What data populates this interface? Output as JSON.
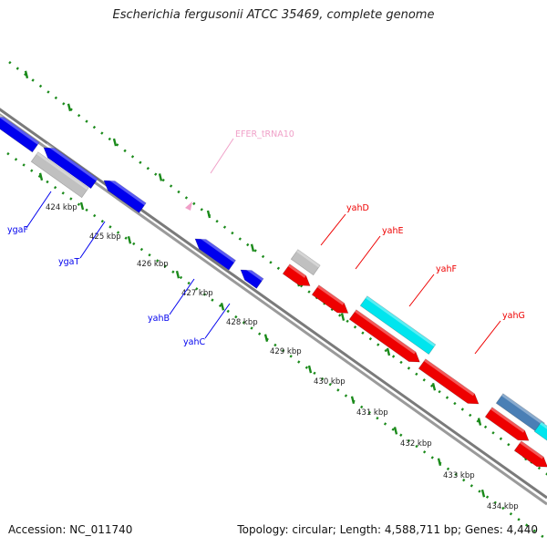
{
  "title": "Escherichia fergusonii ATCC 35469, complete genome",
  "footer": {
    "accession_label": "Accession: NC_011740",
    "topology_label": "Topology: circular; Length: 4,588,711 bp; Genes: 4,440"
  },
  "scale": {
    "unit": "kbp",
    "labels": [
      "424 kbp",
      "425 kbp",
      "426 kbp",
      "427 kbp",
      "428 kbp",
      "429 kbp",
      "430 kbp",
      "431 kbp",
      "432 kbp",
      "433 kbp",
      "434 kbp"
    ]
  },
  "genes": [
    {
      "name": "ygaF",
      "strand": "reverse"
    },
    {
      "name": "ygaT",
      "strand": "reverse"
    },
    {
      "name": "yahB",
      "strand": "reverse"
    },
    {
      "name": "yahC",
      "strand": "reverse"
    },
    {
      "name": "yahD",
      "strand": "forward"
    },
    {
      "name": "yahE",
      "strand": "forward"
    },
    {
      "name": "yahF",
      "strand": "forward"
    },
    {
      "name": "yahG",
      "strand": "forward"
    },
    {
      "name": "EFER_tRNA10",
      "strand": "forward"
    }
  ],
  "colors": {
    "reverse_cds": "#0000ee",
    "forward_cds": "#ee0000",
    "pseudo": "#c0c0c0",
    "cyan_feature": "#00e5ee",
    "steelblue_feature": "#4a7fb5",
    "trna": "#f0a0c8",
    "ruler": "#1a8a1a",
    "backbone": "#888888"
  }
}
